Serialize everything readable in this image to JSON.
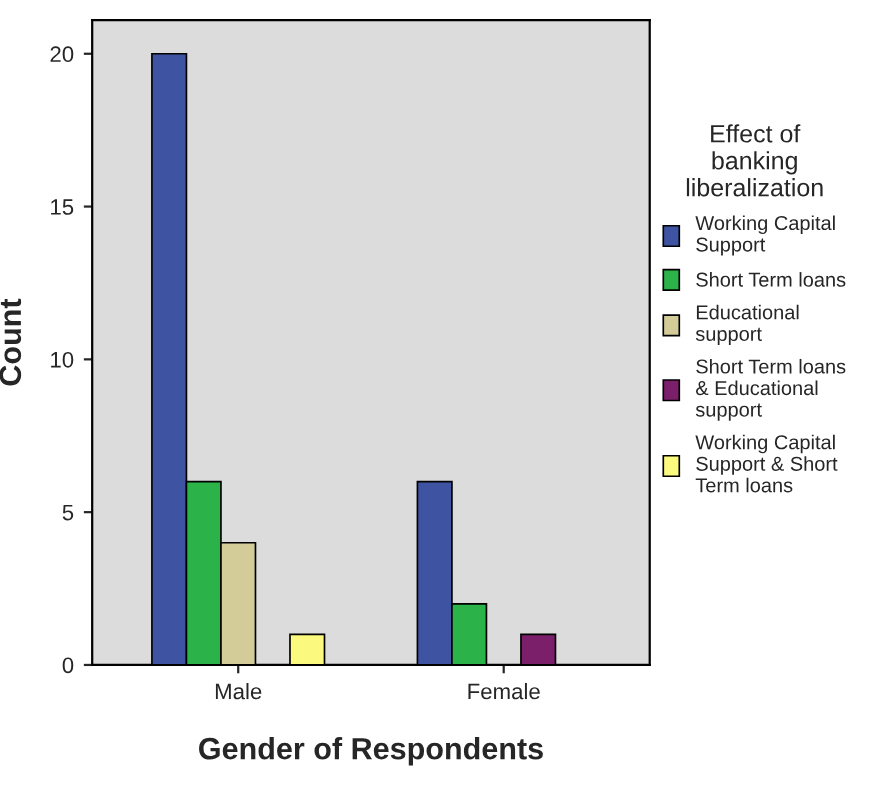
{
  "chart_data": {
    "type": "bar",
    "xlabel": "Gender of Respondents",
    "ylabel": "Count",
    "legend_title": "Effect of\nbanking\nliberalization",
    "categories": [
      "Male",
      "Female"
    ],
    "series": [
      {
        "name": "Working Capital\nSupport",
        "color": "#3e54a3",
        "values": [
          20,
          6
        ]
      },
      {
        "name": "Short Term loans",
        "color": "#2bb34a",
        "values": [
          6,
          2
        ]
      },
      {
        "name": "Educational\nsupport",
        "color": "#d4cc98",
        "values": [
          4,
          null
        ]
      },
      {
        "name": "Short Term loans\n& Educational\nsupport",
        "color": "#7b1f6a",
        "values": [
          null,
          1
        ]
      },
      {
        "name": "Working Capital\nSupport & Short\nTerm loans",
        "color": "#fbfa7f",
        "values": [
          1,
          null
        ]
      }
    ],
    "ylim": [
      0,
      21.1
    ],
    "yticks": [
      0,
      5,
      10,
      15,
      20
    ],
    "grid": false,
    "legend": "right"
  }
}
